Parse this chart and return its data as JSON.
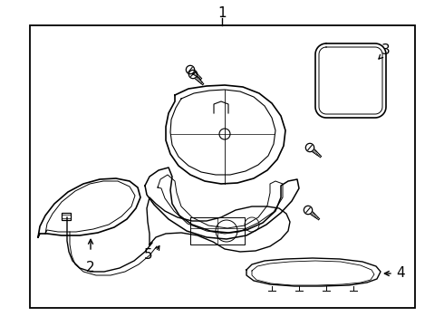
{
  "bg_color": "#ffffff",
  "line_color": "#000000",
  "label_1": "1",
  "label_2": "2",
  "label_3": "3",
  "label_4": "4",
  "label_5": "5",
  "fig_width": 4.9,
  "fig_height": 3.6,
  "dpi": 100
}
